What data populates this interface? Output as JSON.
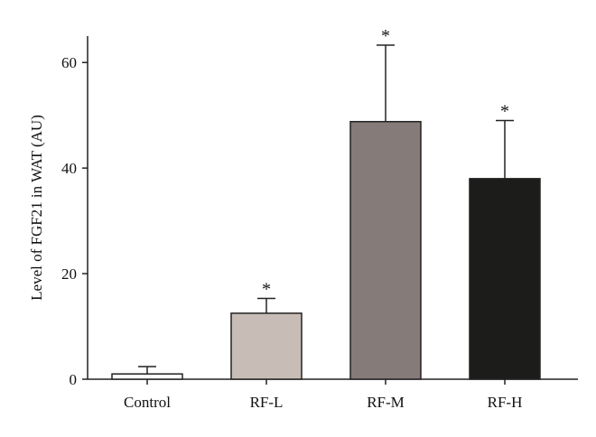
{
  "chart_data": {
    "type": "bar",
    "title": "",
    "xlabel": "",
    "ylabel": "Level of FGF21 in WAT (AU)",
    "ylim": [
      0,
      65
    ],
    "yticks": [
      0,
      20,
      40,
      60
    ],
    "grid": false,
    "categories": [
      "Control",
      "RF-L",
      "RF-M",
      "RF-H"
    ],
    "values": [
      1,
      12.5,
      48.8,
      38
    ],
    "errors": [
      1.4,
      2.8,
      14.5,
      11
    ],
    "significance": [
      "",
      "*",
      "*",
      "*"
    ],
    "colors": [
      "#ffffff",
      "#c8bdb6",
      "#857b78",
      "#1c1d1b"
    ]
  }
}
